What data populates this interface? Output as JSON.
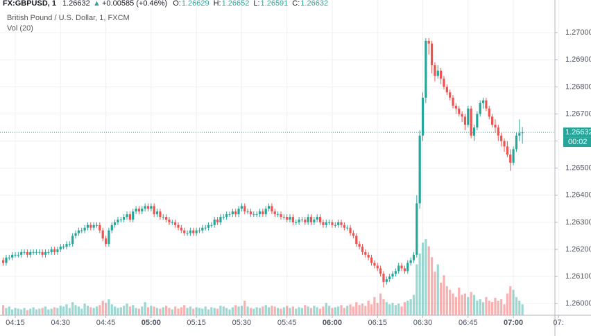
{
  "chart_data": {
    "type": "candlestick",
    "title": "FX:GBPUSD, 1",
    "last": "1.26632",
    "arrow": "▲",
    "change": "+0.00585 (+0.46%)",
    "legend_items": [
      {
        "key": "O:",
        "value": "1.26629"
      },
      {
        "key": "H:",
        "value": "1.26652"
      },
      {
        "key": "L:",
        "value": "1.26591"
      },
      {
        "key": "C:",
        "value": "1.26632"
      }
    ],
    "subtitle": "British Pound / U.S. Dollar, 1, FXCM",
    "volume_label": "Vol (20)",
    "up_color": "#26a69a",
    "down_color": "#ef5350",
    "ylim": [
      1.25957,
      1.2709
    ],
    "yticks": [
      {
        "value": 1.26,
        "label": "1.26000"
      },
      {
        "value": 1.261,
        "label": "1.26100"
      },
      {
        "value": 1.262,
        "label": "1.26200"
      },
      {
        "value": 1.263,
        "label": "1.26300"
      },
      {
        "value": 1.264,
        "label": "1.26400"
      },
      {
        "value": 1.265,
        "label": "1.26500"
      },
      {
        "value": 1.266,
        "label": "1.26600"
      },
      {
        "value": 1.267,
        "label": "1.26700"
      },
      {
        "value": 1.268,
        "label": "1.26800"
      },
      {
        "value": 1.269,
        "label": "1.26900"
      },
      {
        "value": 1.27,
        "label": "1.27000"
      }
    ],
    "xticks": [
      "04:15",
      "04:30",
      "04:45",
      "05:00",
      "05:15",
      "05:30",
      "05:45",
      "06:00",
      "06:15",
      "06:30",
      "06:45",
      "07:00",
      "07:"
    ],
    "grid": true,
    "price_line": {
      "value": 1.26632,
      "label": "1.26632",
      "countdown": "00:02"
    },
    "open": [
      1.2616,
      1.2615,
      1.2617,
      1.2617,
      1.2618,
      1.2618,
      1.2618,
      1.2619,
      1.2619,
      1.2618,
      1.2619,
      1.2619,
      1.2619,
      1.2619,
      1.2618,
      1.2619,
      1.2619,
      1.262,
      1.2619,
      1.262,
      1.2621,
      1.2621,
      1.2622,
      1.2622,
      1.2625,
      1.2626,
      1.2627,
      1.2627,
      1.2628,
      1.2629,
      1.2628,
      1.2629,
      1.2629,
      1.2627,
      1.2624,
      1.2622,
      1.2627,
      1.2629,
      1.263,
      1.2631,
      1.2631,
      1.2632,
      1.2633,
      1.2631,
      1.2634,
      1.2635,
      1.2634,
      1.2635,
      1.2636,
      1.2635,
      1.2636,
      1.2633,
      1.2634,
      1.2632,
      1.2632,
      1.2631,
      1.263,
      1.263,
      1.2629,
      1.2628,
      1.2627,
      1.2626,
      1.2626,
      1.2627,
      1.2626,
      1.2627,
      1.2627,
      1.2628,
      1.2628,
      1.2629,
      1.2629,
      1.2631,
      1.263,
      1.2632,
      1.2632,
      1.2633,
      1.2633,
      1.2634,
      1.2633,
      1.2635,
      1.2636,
      1.2634,
      1.2634,
      1.2633,
      1.2633,
      1.2633,
      1.2634,
      1.2633,
      1.2635,
      1.2636,
      1.2634,
      1.2633,
      1.2633,
      1.2632,
      1.2632,
      1.2631,
      1.2632,
      1.263,
      1.263,
      1.2631,
      1.2631,
      1.263,
      1.2632,
      1.263,
      1.2631,
      1.2632,
      1.263,
      1.2629,
      1.263,
      1.263,
      1.2629,
      1.2629,
      1.263,
      1.2629,
      1.2628,
      1.2628,
      1.2626,
      1.2625,
      1.2622,
      1.2621,
      1.2619,
      1.2618,
      1.2617,
      1.2615,
      1.2614,
      1.2613,
      1.2611,
      1.2608,
      1.2609,
      1.261,
      1.2611,
      1.2612,
      1.2614,
      1.2613,
      1.2612,
      1.2615,
      1.2616,
      1.2618,
      1.2637,
      1.2662,
      1.2676,
      1.2697,
      1.2696,
      1.2688,
      1.2684,
      1.2686,
      1.2683,
      1.268,
      1.2678,
      1.2676,
      1.2673,
      1.2672,
      1.267,
      1.2669,
      1.2666,
      1.2672,
      1.2662,
      1.2665,
      1.267,
      1.2674,
      1.2675,
      1.2672,
      1.2669,
      1.2666,
      1.2665,
      1.2662,
      1.266,
      1.2658,
      1.2655,
      1.2652,
      1.2657,
      1.2662,
      1.26629
    ],
    "high": [
      1.2617,
      1.2618,
      1.2618,
      1.2619,
      1.2619,
      1.2619,
      1.262,
      1.262,
      1.262,
      1.262,
      1.262,
      1.262,
      1.262,
      1.262,
      1.262,
      1.262,
      1.2621,
      1.2621,
      1.2621,
      1.2622,
      1.2622,
      1.2623,
      1.2623,
      1.2626,
      1.2627,
      1.2628,
      1.2628,
      1.2629,
      1.263,
      1.263,
      1.263,
      1.263,
      1.263,
      1.2628,
      1.2625,
      1.2628,
      1.263,
      1.2631,
      1.2632,
      1.2632,
      1.2633,
      1.2634,
      1.2634,
      1.2635,
      1.2636,
      1.2636,
      1.2636,
      1.2637,
      1.2637,
      1.2637,
      1.2637,
      1.2635,
      1.2635,
      1.2633,
      1.2633,
      1.2632,
      1.2631,
      1.2631,
      1.263,
      1.2629,
      1.2628,
      1.2627,
      1.2628,
      1.2628,
      1.2628,
      1.2628,
      1.2629,
      1.2629,
      1.263,
      1.263,
      1.2632,
      1.2632,
      1.2633,
      1.2633,
      1.2634,
      1.2634,
      1.2635,
      1.2635,
      1.2636,
      1.2637,
      1.2637,
      1.2635,
      1.2635,
      1.2634,
      1.2634,
      1.2635,
      1.2635,
      1.2636,
      1.2637,
      1.2637,
      1.2635,
      1.2634,
      1.2634,
      1.2633,
      1.2633,
      1.2633,
      1.2633,
      1.2631,
      1.2632,
      1.2632,
      1.2632,
      1.2633,
      1.2633,
      1.2632,
      1.2633,
      1.2633,
      1.2631,
      1.2631,
      1.2631,
      1.2631,
      1.263,
      1.2631,
      1.2631,
      1.263,
      1.2629,
      1.2629,
      1.2627,
      1.2626,
      1.2623,
      1.2622,
      1.262,
      1.2619,
      1.2618,
      1.2616,
      1.2615,
      1.2614,
      1.2612,
      1.261,
      1.2611,
      1.2612,
      1.2613,
      1.2615,
      1.2615,
      1.2614,
      1.2616,
      1.2617,
      1.2619,
      1.264,
      1.2664,
      1.2678,
      1.2698,
      1.2698,
      1.2697,
      1.2689,
      1.2688,
      1.2687,
      1.2684,
      1.2681,
      1.2679,
      1.2677,
      1.2674,
      1.2673,
      1.2671,
      1.267,
      1.2673,
      1.2673,
      1.2666,
      1.2671,
      1.2675,
      1.2676,
      1.2676,
      1.2673,
      1.267,
      1.2668,
      1.2666,
      1.2663,
      1.2661,
      1.266,
      1.2657,
      1.2658,
      1.2663,
      1.2668,
      1.26652
    ],
    "low": [
      1.2614,
      1.2614,
      1.2616,
      1.2616,
      1.2617,
      1.2617,
      1.2617,
      1.2618,
      1.2617,
      1.2617,
      1.2618,
      1.2618,
      1.2618,
      1.2617,
      1.2617,
      1.2618,
      1.2618,
      1.2618,
      1.2618,
      1.2619,
      1.262,
      1.262,
      1.2621,
      1.2621,
      1.2624,
      1.2625,
      1.2626,
      1.2626,
      1.2627,
      1.2627,
      1.2627,
      1.2628,
      1.2626,
      1.2623,
      1.2621,
      1.2621,
      1.2626,
      1.2628,
      1.2629,
      1.263,
      1.263,
      1.2631,
      1.263,
      1.263,
      1.2633,
      1.2633,
      1.2633,
      1.2634,
      1.2634,
      1.2634,
      1.2632,
      1.2632,
      1.2631,
      1.2631,
      1.263,
      1.2629,
      1.2629,
      1.2628,
      1.2627,
      1.2626,
      1.2625,
      1.2625,
      1.2625,
      1.2625,
      1.2625,
      1.2626,
      1.2626,
      1.2627,
      1.2627,
      1.2628,
      1.2628,
      1.2629,
      1.2629,
      1.2631,
      1.2631,
      1.2632,
      1.2632,
      1.2632,
      1.2632,
      1.2634,
      1.2633,
      1.2633,
      1.2632,
      1.2632,
      1.2632,
      1.2632,
      1.2632,
      1.2632,
      1.2634,
      1.2633,
      1.2632,
      1.2632,
      1.2631,
      1.2631,
      1.263,
      1.263,
      1.2629,
      1.2629,
      1.2629,
      1.263,
      1.2629,
      1.2629,
      1.2629,
      1.2629,
      1.263,
      1.2629,
      1.2628,
      1.2628,
      1.2629,
      1.2628,
      1.2628,
      1.2628,
      1.2628,
      1.2627,
      1.2627,
      1.2625,
      1.2624,
      1.2621,
      1.262,
      1.2618,
      1.2617,
      1.2616,
      1.2614,
      1.2613,
      1.2612,
      1.261,
      1.2606,
      1.2607,
      1.2608,
      1.2609,
      1.261,
      1.2611,
      1.2612,
      1.2611,
      1.2611,
      1.2614,
      1.2615,
      1.2617,
      1.2635,
      1.266,
      1.2674,
      1.2692,
      1.2685,
      1.2682,
      1.2683,
      1.2681,
      1.2679,
      1.2677,
      1.2675,
      1.2672,
      1.267,
      1.2669,
      1.2667,
      1.2664,
      1.2665,
      1.2661,
      1.266,
      1.2664,
      1.2669,
      1.2672,
      1.2671,
      1.2668,
      1.2665,
      1.2663,
      1.266,
      1.2658,
      1.2656,
      1.2654,
      1.2649,
      1.2651,
      1.2656,
      1.266,
      1.26591
    ],
    "close": [
      1.2615,
      1.2617,
      1.2617,
      1.2618,
      1.2618,
      1.2618,
      1.2619,
      1.2619,
      1.2618,
      1.2619,
      1.2619,
      1.2619,
      1.2619,
      1.2618,
      1.2619,
      1.2619,
      1.262,
      1.2619,
      1.262,
      1.2621,
      1.2621,
      1.2622,
      1.2622,
      1.2625,
      1.2626,
      1.2627,
      1.2627,
      1.2628,
      1.2629,
      1.2628,
      1.2629,
      1.2629,
      1.2627,
      1.2624,
      1.2622,
      1.2627,
      1.2629,
      1.263,
      1.2631,
      1.2631,
      1.2632,
      1.2633,
      1.2631,
      1.2634,
      1.2635,
      1.2634,
      1.2635,
      1.2636,
      1.2635,
      1.2636,
      1.2633,
      1.2634,
      1.2632,
      1.2632,
      1.2631,
      1.263,
      1.263,
      1.2629,
      1.2628,
      1.2627,
      1.2626,
      1.2626,
      1.2627,
      1.2626,
      1.2627,
      1.2627,
      1.2628,
      1.2628,
      1.2629,
      1.2629,
      1.2631,
      1.263,
      1.2632,
      1.2632,
      1.2633,
      1.2633,
      1.2634,
      1.2633,
      1.2635,
      1.2636,
      1.2634,
      1.2634,
      1.2633,
      1.2633,
      1.2633,
      1.2634,
      1.2633,
      1.2635,
      1.2636,
      1.2634,
      1.2633,
      1.2633,
      1.2632,
      1.2632,
      1.2631,
      1.2632,
      1.263,
      1.263,
      1.2631,
      1.2631,
      1.263,
      1.2632,
      1.263,
      1.2631,
      1.2632,
      1.263,
      1.2629,
      1.263,
      1.263,
      1.2629,
      1.2629,
      1.263,
      1.2629,
      1.2628,
      1.2628,
      1.2626,
      1.2625,
      1.2622,
      1.2621,
      1.2619,
      1.2618,
      1.2617,
      1.2615,
      1.2614,
      1.2613,
      1.2611,
      1.2608,
      1.2609,
      1.261,
      1.2611,
      1.2612,
      1.2614,
      1.2613,
      1.2612,
      1.2615,
      1.2616,
      1.2618,
      1.2637,
      1.2662,
      1.2676,
      1.2697,
      1.2696,
      1.2688,
      1.2684,
      1.2686,
      1.2683,
      1.268,
      1.2678,
      1.2676,
      1.2673,
      1.2672,
      1.267,
      1.2669,
      1.2666,
      1.2672,
      1.2662,
      1.2665,
      1.267,
      1.2674,
      1.2675,
      1.2672,
      1.2669,
      1.2666,
      1.2665,
      1.2662,
      1.266,
      1.2658,
      1.2655,
      1.2652,
      1.2657,
      1.2662,
      1.26629,
      1.26632
    ],
    "volume": [
      14,
      10,
      12,
      8,
      10,
      9,
      8,
      10,
      7,
      9,
      11,
      8,
      9,
      10,
      12,
      8,
      9,
      11,
      10,
      13,
      12,
      15,
      10,
      18,
      14,
      12,
      9,
      16,
      13,
      11,
      10,
      12,
      14,
      20,
      17,
      22,
      15,
      12,
      10,
      11,
      13,
      16,
      12,
      14,
      10,
      9,
      12,
      18,
      11,
      13,
      12,
      10,
      9,
      11,
      13,
      10,
      8,
      12,
      9,
      11,
      14,
      10,
      12,
      9,
      11,
      10,
      9,
      12,
      8,
      11,
      10,
      9,
      13,
      12,
      10,
      8,
      11,
      14,
      12,
      13,
      20,
      12,
      10,
      9,
      11,
      10,
      12,
      14,
      11,
      13,
      12,
      10,
      9,
      11,
      13,
      10,
      12,
      9,
      11,
      10,
      14,
      12,
      10,
      13,
      11,
      9,
      12,
      17,
      13,
      10,
      11,
      12,
      14,
      10,
      13,
      15,
      12,
      18,
      14,
      16,
      13,
      20,
      15,
      25,
      17,
      30,
      22,
      18,
      15,
      17,
      14,
      16,
      12,
      18,
      20,
      22,
      28,
      70,
      85,
      100,
      105,
      95,
      80,
      60,
      70,
      45,
      55,
      40,
      35,
      30,
      25,
      38,
      28,
      30,
      25,
      32,
      28,
      20,
      22,
      18,
      25,
      20,
      18,
      24,
      20,
      22,
      15,
      30,
      40,
      35,
      25,
      20,
      15
    ]
  }
}
